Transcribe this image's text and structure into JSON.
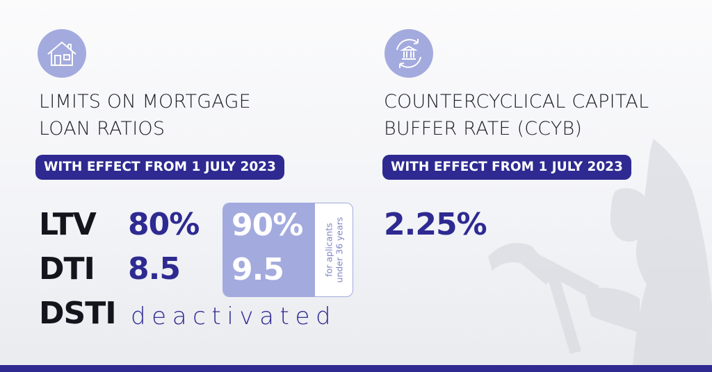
{
  "colors": {
    "navy": "#2e2a91",
    "lavender": "#a3aade",
    "text": "#14141c"
  },
  "left_panel": {
    "icon": "house-icon",
    "title_line1": "LIMITS ON MORTGAGE",
    "title_line2": "LOAN RATIOS",
    "effective_label": "WITH EFFECT FROM 1 JULY 2023",
    "rows": [
      {
        "label": "LTV",
        "value": "80%",
        "young_value": "90%"
      },
      {
        "label": "DTI",
        "value": "8.5",
        "young_value": "9.5"
      },
      {
        "label": "DSTI",
        "value": "deactivated"
      }
    ],
    "young_note_line1": "for aplicants",
    "young_note_line2": "under 36 years"
  },
  "right_panel": {
    "icon": "bank-cycle-icon",
    "title_line1": "COUNTERCYCLICAL CAPITAL",
    "title_line2": "BUFFER RATE (CCYB)",
    "effective_label": "WITH EFFECT FROM 1 JULY 2023",
    "rate": "2.25%"
  }
}
